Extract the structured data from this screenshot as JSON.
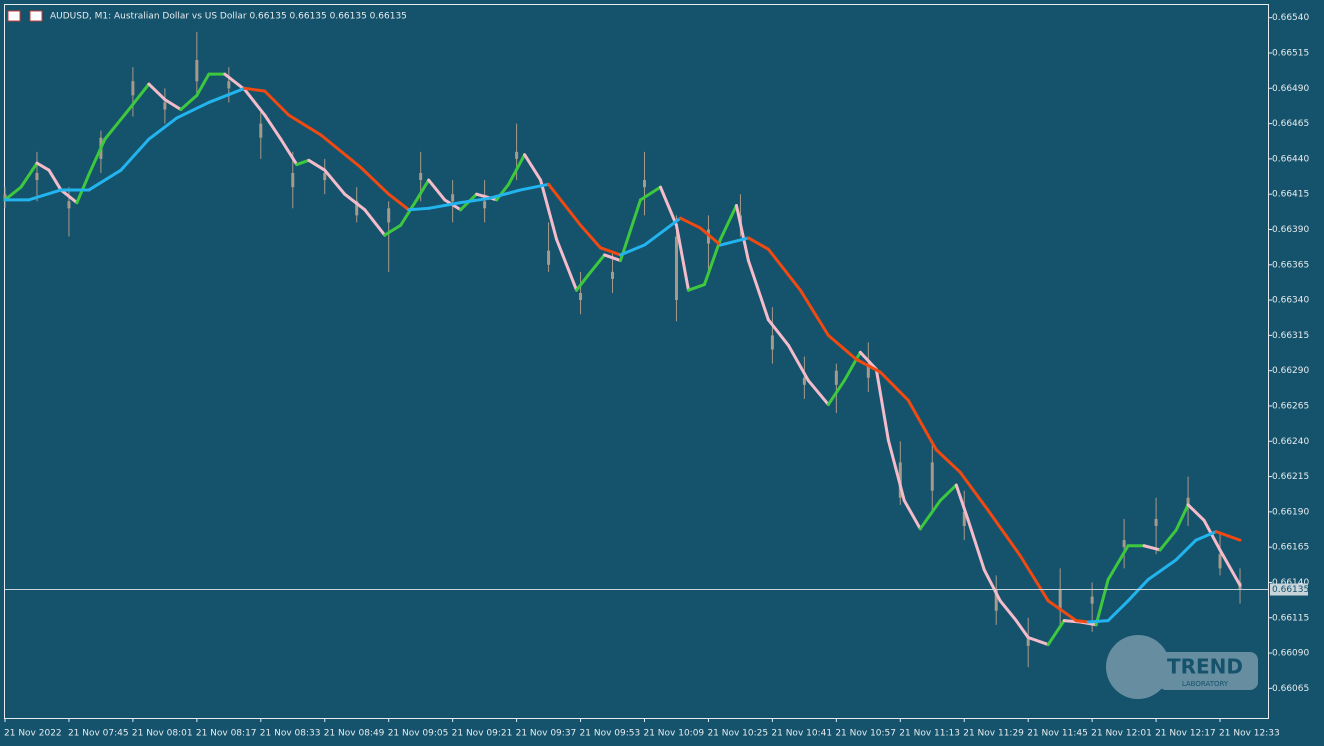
{
  "chart_data": {
    "type": "candlestick",
    "title": "AUDUSD, M1:  Australian Dollar vs US Dollar  0.66135 0.66135 0.66135 0.66135",
    "background": "#15526b",
    "candle_color": "#a89a8a",
    "xlim": [
      0,
      316
    ],
    "ylim": [
      0.66044,
      0.66549
    ],
    "xticks": [
      {
        "value": 0,
        "label": "21 Nov 2022"
      },
      {
        "value": 16,
        "label": "21 Nov 07:45"
      },
      {
        "value": 32,
        "label": "21 Nov 08:01"
      },
      {
        "value": 48,
        "label": "21 Nov 08:17"
      },
      {
        "value": 64,
        "label": "21 Nov 08:33"
      },
      {
        "value": 80,
        "label": "21 Nov 08:49"
      },
      {
        "value": 96,
        "label": "21 Nov 09:05"
      },
      {
        "value": 112,
        "label": "21 Nov 09:21"
      },
      {
        "value": 128,
        "label": "21 Nov 09:37"
      },
      {
        "value": 144,
        "label": "21 Nov 09:53"
      },
      {
        "value": 160,
        "label": "21 Nov 10:09"
      },
      {
        "value": 176,
        "label": "21 Nov 10:25"
      },
      {
        "value": 192,
        "label": "21 Nov 10:41"
      },
      {
        "value": 208,
        "label": "21 Nov 10:57"
      },
      {
        "value": 224,
        "label": "21 Nov 11:13"
      },
      {
        "value": 240,
        "label": "21 Nov 11:29"
      },
      {
        "value": 256,
        "label": "21 Nov 11:45"
      },
      {
        "value": 272,
        "label": "21 Nov 12:01"
      },
      {
        "value": 288,
        "label": "21 Nov 12:17"
      },
      {
        "value": 304,
        "label": "21 Nov 12:33"
      }
    ],
    "yticks": [
      {
        "value": 0.6654,
        "label": "0.66540"
      },
      {
        "value": 0.66515,
        "label": "0.66515"
      },
      {
        "value": 0.6649,
        "label": "0.66490"
      },
      {
        "value": 0.66465,
        "label": "0.66465"
      },
      {
        "value": 0.6644,
        "label": "0.66440"
      },
      {
        "value": 0.66415,
        "label": "0.66415"
      },
      {
        "value": 0.6639,
        "label": "0.66390"
      },
      {
        "value": 0.66365,
        "label": "0.66365"
      },
      {
        "value": 0.6634,
        "label": "0.66340"
      },
      {
        "value": 0.66315,
        "label": "0.66315"
      },
      {
        "value": 0.6629,
        "label": "0.66290"
      },
      {
        "value": 0.66265,
        "label": "0.66265"
      },
      {
        "value": 0.6624,
        "label": "0.66240"
      },
      {
        "value": 0.66215,
        "label": "0.66215"
      },
      {
        "value": 0.6619,
        "label": "0.66190"
      },
      {
        "value": 0.66165,
        "label": "0.66165"
      },
      {
        "value": 0.6614,
        "label": "0.66140"
      },
      {
        "value": 0.66115,
        "label": "0.66115"
      },
      {
        "value": 0.6609,
        "label": "0.66090"
      },
      {
        "value": 0.66065,
        "label": "0.66065"
      }
    ],
    "current_price": {
      "value": 0.66135,
      "label": "0.66135"
    },
    "x": [
      0,
      8,
      16,
      24,
      32,
      40,
      48,
      56,
      64,
      72,
      80,
      88,
      96,
      104,
      112,
      120,
      128,
      136,
      144,
      152,
      160,
      168,
      176,
      184,
      192,
      200,
      208,
      216,
      224,
      232,
      240,
      248,
      256,
      264,
      272,
      280,
      288,
      296,
      304,
      309
    ],
    "open": [
      0.6641,
      0.6643,
      0.6641,
      0.6644,
      0.66485,
      0.6648,
      0.66495,
      0.66495,
      0.66465,
      0.6643,
      0.6643,
      0.6641,
      0.66395,
      0.66425,
      0.6641,
      0.6641,
      0.6644,
      0.66375,
      0.66345,
      0.6636,
      0.6642,
      0.66385,
      0.6638,
      0.664,
      0.66315,
      0.66285,
      0.6628,
      0.66295,
      0.66225,
      0.66205,
      0.6619,
      0.66135,
      0.661,
      0.6612,
      0.66125,
      0.66165,
      0.6618,
      0.66195,
      0.6616,
      0.6614
    ],
    "high": [
      0.6642,
      0.66445,
      0.6642,
      0.6646,
      0.66505,
      0.6649,
      0.6653,
      0.66505,
      0.66475,
      0.66445,
      0.6644,
      0.6642,
      0.6641,
      0.66445,
      0.66425,
      0.66425,
      0.66465,
      0.66395,
      0.6636,
      0.66375,
      0.66445,
      0.664,
      0.664,
      0.66415,
      0.66335,
      0.663,
      0.66295,
      0.6631,
      0.6624,
      0.6624,
      0.66205,
      0.66145,
      0.66115,
      0.6615,
      0.6614,
      0.66185,
      0.662,
      0.66215,
      0.66175,
      0.6615
    ],
    "low": [
      0.66405,
      0.6641,
      0.66385,
      0.6643,
      0.6647,
      0.66465,
      0.66485,
      0.6648,
      0.6644,
      0.66405,
      0.66415,
      0.66395,
      0.6636,
      0.6641,
      0.66395,
      0.66395,
      0.66425,
      0.6636,
      0.6633,
      0.66345,
      0.664,
      0.66325,
      0.6636,
      0.66385,
      0.66295,
      0.6627,
      0.6626,
      0.66275,
      0.66195,
      0.6619,
      0.6617,
      0.6611,
      0.6608,
      0.6611,
      0.66105,
      0.6615,
      0.6616,
      0.6618,
      0.66145,
      0.66125
    ],
    "close": [
      0.66415,
      0.66425,
      0.66405,
      0.66455,
      0.66495,
      0.66475,
      0.6651,
      0.6649,
      0.66455,
      0.6642,
      0.66425,
      0.664,
      0.66405,
      0.6643,
      0.66415,
      0.66405,
      0.66445,
      0.66365,
      0.6634,
      0.66355,
      0.66425,
      0.6634,
      0.6639,
      0.66395,
      0.66305,
      0.6628,
      0.6629,
      0.66285,
      0.662,
      0.66225,
      0.6618,
      0.6612,
      0.66095,
      0.66135,
      0.6613,
      0.6617,
      0.66185,
      0.662,
      0.6615,
      0.66135
    ],
    "series": [
      {
        "up_color": "#3dc83d",
        "down_color": "#f4bccb",
        "x": [
          0,
          4,
          8,
          11,
          14,
          18,
          21,
          25,
          31,
          36,
          40,
          44,
          48,
          51,
          55,
          60,
          65,
          69,
          73,
          76,
          80,
          85,
          90,
          95,
          99,
          103,
          106,
          110,
          114,
          118,
          123,
          126,
          130,
          134,
          138,
          143,
          146,
          150,
          154,
          159,
          164,
          168,
          171,
          175,
          179,
          183,
          186,
          191,
          196,
          201,
          206,
          210,
          214,
          218,
          221,
          225,
          229,
          234,
          238,
          241,
          245,
          249,
          253,
          256,
          261,
          265,
          269,
          273,
          276,
          281,
          285,
          289,
          293,
          296,
          300,
          304,
          309
        ],
        "values": [
          0.66411,
          0.6642,
          0.66437,
          0.66432,
          0.66418,
          0.66409,
          0.66429,
          0.66454,
          0.66475,
          0.66493,
          0.66482,
          0.66475,
          0.66485,
          0.665,
          0.665,
          0.66489,
          0.66471,
          0.66454,
          0.66436,
          0.66439,
          0.66432,
          0.66415,
          0.66404,
          0.66386,
          0.66393,
          0.66411,
          0.66425,
          0.66411,
          0.66404,
          0.66415,
          0.66411,
          0.66422,
          0.66443,
          0.66425,
          0.66383,
          0.66347,
          0.66358,
          0.66372,
          0.66368,
          0.66411,
          0.6642,
          0.66393,
          0.66347,
          0.66351,
          0.66383,
          0.66407,
          0.66368,
          0.66326,
          0.66308,
          0.66283,
          0.66266,
          0.66283,
          0.66303,
          0.66291,
          0.66241,
          0.66198,
          0.66178,
          0.66198,
          0.66209,
          0.66184,
          0.66149,
          0.66127,
          0.66113,
          0.66101,
          0.66096,
          0.66113,
          0.66112,
          0.6611,
          0.66142,
          0.66166,
          0.66166,
          0.66163,
          0.66177,
          0.66195,
          0.66184,
          0.66163,
          0.66138
        ]
      },
      {
        "up_color": "#22b4ee",
        "down_color": "#f04a12",
        "x": [
          0,
          6,
          14,
          21,
          29,
          36,
          43,
          51,
          60,
          65,
          71,
          79,
          89,
          96,
          101,
          106,
          114,
          121,
          129,
          136,
          144,
          149,
          154,
          160,
          169,
          174,
          179,
          186,
          191,
          199,
          206,
          213,
          219,
          226,
          233,
          239,
          246,
          254,
          261,
          268,
          271,
          276,
          281,
          286,
          293,
          298,
          303,
          309
        ],
        "values": [
          0.66411,
          0.66411,
          0.66418,
          0.66418,
          0.66432,
          0.66454,
          0.66469,
          0.6648,
          0.6649,
          0.66488,
          0.66471,
          0.66457,
          0.66434,
          0.66415,
          0.66404,
          0.66405,
          0.66409,
          0.66412,
          0.66418,
          0.66422,
          0.66393,
          0.66377,
          0.66372,
          0.66379,
          0.66398,
          0.66391,
          0.66379,
          0.66384,
          0.66376,
          0.66347,
          0.66315,
          0.66298,
          0.66289,
          0.66269,
          0.66234,
          0.66218,
          0.66191,
          0.66159,
          0.66127,
          0.66113,
          0.66112,
          0.66113,
          0.66127,
          0.66142,
          0.66156,
          0.6617,
          0.66176,
          0.6617
        ]
      }
    ],
    "logo": {
      "name": "TREND",
      "tagline": "LABORATORY"
    }
  }
}
